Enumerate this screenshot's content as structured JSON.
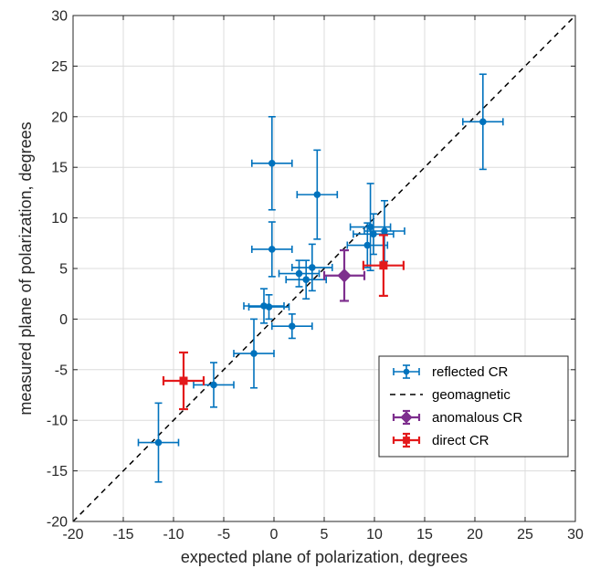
{
  "chart_data": {
    "type": "scatter",
    "xlabel": "expected plane of polarization, degrees",
    "ylabel": "measured plane of polarization, degrees",
    "xlim": [
      -20,
      30
    ],
    "ylim": [
      -20,
      30
    ],
    "xticks": [
      -20,
      -15,
      -10,
      -5,
      0,
      5,
      10,
      15,
      20,
      25,
      30
    ],
    "yticks": [
      -20,
      -15,
      -10,
      -5,
      0,
      5,
      10,
      15,
      20,
      25,
      30
    ],
    "grid": true,
    "legend_position": "lower-right",
    "series": [
      {
        "name": "reflected CR",
        "color": "#0072BD",
        "marker": "dot",
        "points": [
          {
            "x": -11.5,
            "y": -12.2,
            "xerr": 2.0,
            "yerr": 3.9
          },
          {
            "x": -6.0,
            "y": -6.5,
            "xerr": 2.0,
            "yerr": 2.2
          },
          {
            "x": -2.0,
            "y": -3.4,
            "xerr": 2.0,
            "yerr": 3.4
          },
          {
            "x": -1.0,
            "y": 1.3,
            "xerr": 2.0,
            "yerr": 1.7
          },
          {
            "x": -0.5,
            "y": 1.2,
            "xerr": 2.0,
            "yerr": 1.2
          },
          {
            "x": 1.8,
            "y": -0.7,
            "xerr": 2.0,
            "yerr": 1.2
          },
          {
            "x": -0.2,
            "y": 15.4,
            "xerr": 2.0,
            "yerr": 4.6
          },
          {
            "x": -0.2,
            "y": 6.9,
            "xerr": 2.0,
            "yerr": 2.7
          },
          {
            "x": 4.3,
            "y": 12.3,
            "xerr": 2.0,
            "yerr": 4.4
          },
          {
            "x": 2.5,
            "y": 4.5,
            "xerr": 2.0,
            "yerr": 1.3
          },
          {
            "x": 3.2,
            "y": 3.9,
            "xerr": 2.0,
            "yerr": 1.9
          },
          {
            "x": 3.8,
            "y": 5.1,
            "xerr": 2.0,
            "yerr": 2.3
          },
          {
            "x": 9.3,
            "y": 7.3,
            "xerr": 2.0,
            "yerr": 2.2
          },
          {
            "x": 9.6,
            "y": 9.1,
            "xerr": 2.0,
            "yerr": 4.3
          },
          {
            "x": 9.9,
            "y": 8.4,
            "xerr": 2.0,
            "yerr": 2.0
          },
          {
            "x": 11.0,
            "y": 8.7,
            "xerr": 2.0,
            "yerr": 3.0
          },
          {
            "x": 20.8,
            "y": 19.5,
            "xerr": 2.0,
            "yerr": 4.7
          }
        ]
      },
      {
        "name": "geomagnetic",
        "color": "#000000",
        "style": "dashed",
        "line": [
          [
            -20,
            -20
          ],
          [
            30,
            30
          ]
        ]
      },
      {
        "name": "anomalous CR",
        "color": "#7E2F8E",
        "marker": "diamond",
        "points": [
          {
            "x": 7.0,
            "y": 4.3,
            "xerr": 2.0,
            "yerr": 2.5
          }
        ]
      },
      {
        "name": "direct CR",
        "color": "#E31A1C",
        "marker": "square",
        "points": [
          {
            "x": -9.0,
            "y": -6.1,
            "xerr": 2.0,
            "yerr": 2.8
          },
          {
            "x": 10.9,
            "y": 5.3,
            "xerr": 2.0,
            "yerr": 3.0
          }
        ]
      }
    ]
  }
}
